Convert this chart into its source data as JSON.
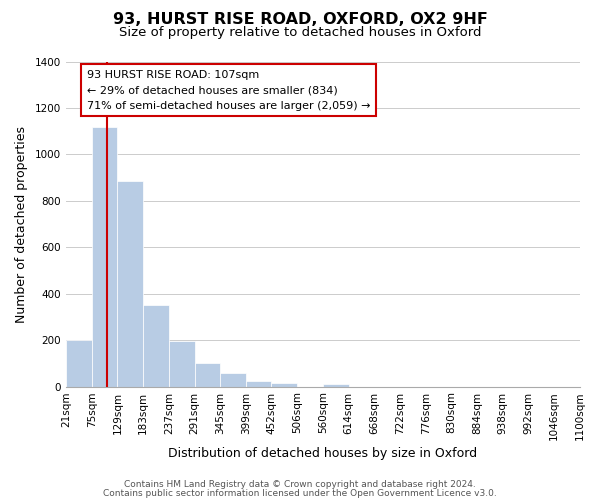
{
  "title": "93, HURST RISE ROAD, OXFORD, OX2 9HF",
  "subtitle": "Size of property relative to detached houses in Oxford",
  "xlabel": "Distribution of detached houses by size in Oxford",
  "ylabel": "Number of detached properties",
  "bar_labels": [
    "21sqm",
    "75sqm",
    "129sqm",
    "183sqm",
    "237sqm",
    "291sqm",
    "345sqm",
    "399sqm",
    "452sqm",
    "506sqm",
    "560sqm",
    "614sqm",
    "668sqm",
    "722sqm",
    "776sqm",
    "830sqm",
    "884sqm",
    "938sqm",
    "992sqm",
    "1046sqm",
    "1100sqm"
  ],
  "bar_values": [
    200,
    1120,
    885,
    350,
    195,
    100,
    57,
    25,
    15,
    0,
    12,
    0,
    0,
    0,
    0,
    0,
    0,
    0,
    0,
    0
  ],
  "bar_color": "#b8cce4",
  "property_line_x": 107,
  "bin_edges": [
    21,
    75,
    129,
    183,
    237,
    291,
    345,
    399,
    452,
    506,
    560,
    614,
    668,
    722,
    776,
    830,
    884,
    938,
    992,
    1046,
    1100
  ],
  "annotation_box_text": "93 HURST RISE ROAD: 107sqm\n← 29% of detached houses are smaller (834)\n71% of semi-detached houses are larger (2,059) →",
  "red_line_color": "#cc0000",
  "footer_line1": "Contains HM Land Registry data © Crown copyright and database right 2024.",
  "footer_line2": "Contains public sector information licensed under the Open Government Licence v3.0.",
  "ylim": [
    0,
    1400
  ],
  "yticks": [
    0,
    200,
    400,
    600,
    800,
    1000,
    1200,
    1400
  ],
  "background_color": "#ffffff",
  "grid_color": "#cccccc",
  "title_fontsize": 11.5,
  "subtitle_fontsize": 9.5,
  "axis_label_fontsize": 9,
  "tick_fontsize": 7.5,
  "footer_fontsize": 6.5
}
